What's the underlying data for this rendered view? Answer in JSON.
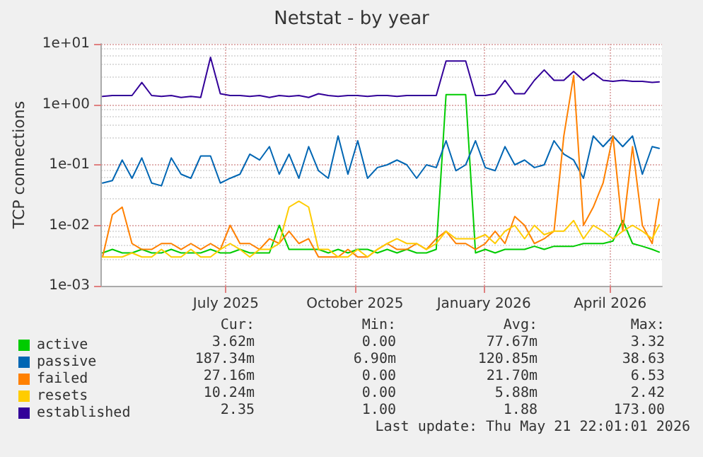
{
  "chart_data": {
    "type": "line",
    "title": "Netstat - by year",
    "ylabel": "TCP connections",
    "x": [
      "2025-04-19",
      "2025-04-26",
      "2025-05-03",
      "2025-05-10",
      "2025-05-17",
      "2025-05-24",
      "2025-05-31",
      "2025-06-07",
      "2025-06-14",
      "2025-06-21",
      "2025-06-28",
      "2025-07-05",
      "2025-07-12",
      "2025-07-19",
      "2025-07-26",
      "2025-08-02",
      "2025-08-09",
      "2025-08-16",
      "2025-08-23",
      "2025-08-30",
      "2025-09-06",
      "2025-09-13",
      "2025-09-20",
      "2025-09-27",
      "2025-10-04",
      "2025-10-11",
      "2025-10-18",
      "2025-10-25",
      "2025-11-01",
      "2025-11-08",
      "2025-11-15",
      "2025-11-22",
      "2025-11-29",
      "2025-12-06",
      "2025-12-13",
      "2025-12-20",
      "2025-12-27",
      "2026-01-03",
      "2026-01-10",
      "2026-01-17",
      "2026-01-24",
      "2026-01-31",
      "2026-02-07",
      "2026-02-14",
      "2026-02-21",
      "2026-02-28",
      "2026-03-07",
      "2026-03-14",
      "2026-03-21",
      "2026-03-28",
      "2026-04-04",
      "2026-04-11",
      "2026-04-18",
      "2026-04-25",
      "2026-05-02",
      "2026-05-09",
      "2026-05-16",
      "2026-05-21"
    ],
    "series": [
      {
        "name": "active",
        "color": "#00cc00",
        "values": [
          0.0035,
          0.004,
          0.0035,
          0.0035,
          0.004,
          0.0035,
          0.0035,
          0.004,
          0.0035,
          0.0035,
          0.0035,
          0.004,
          0.0035,
          0.0035,
          0.004,
          0.0035,
          0.0035,
          0.0035,
          0.01,
          0.004,
          0.004,
          0.004,
          0.004,
          0.0035,
          0.004,
          0.0035,
          0.004,
          0.004,
          0.0035,
          0.004,
          0.0035,
          0.004,
          0.0035,
          0.0035,
          0.004,
          1.45,
          1.45,
          1.45,
          0.0035,
          0.004,
          0.0035,
          0.004,
          0.004,
          0.004,
          0.0045,
          0.004,
          0.0045,
          0.0045,
          0.0045,
          0.005,
          0.005,
          0.005,
          0.0055,
          0.012,
          0.005,
          0.0045,
          0.004,
          0.0036
        ]
      },
      {
        "name": "passive",
        "color": "#0066b3",
        "values": [
          0.05,
          0.055,
          0.12,
          0.06,
          0.13,
          0.05,
          0.045,
          0.13,
          0.07,
          0.06,
          0.14,
          0.14,
          0.05,
          0.06,
          0.07,
          0.15,
          0.12,
          0.2,
          0.07,
          0.15,
          0.06,
          0.2,
          0.08,
          0.06,
          0.3,
          0.07,
          0.25,
          0.06,
          0.09,
          0.1,
          0.12,
          0.1,
          0.06,
          0.1,
          0.09,
          0.25,
          0.08,
          0.1,
          0.25,
          0.09,
          0.08,
          0.2,
          0.1,
          0.12,
          0.09,
          0.1,
          0.25,
          0.15,
          0.12,
          0.06,
          0.3,
          0.2,
          0.3,
          0.2,
          0.3,
          0.07,
          0.2,
          0.187
        ]
      },
      {
        "name": "failed",
        "color": "#ff8000",
        "values": [
          0.003,
          0.015,
          0.02,
          0.005,
          0.004,
          0.004,
          0.005,
          0.005,
          0.004,
          0.005,
          0.004,
          0.005,
          0.004,
          0.01,
          0.005,
          0.005,
          0.004,
          0.006,
          0.005,
          0.008,
          0.005,
          0.006,
          0.003,
          0.003,
          0.003,
          0.004,
          0.003,
          0.003,
          0.004,
          0.005,
          0.004,
          0.004,
          0.005,
          0.004,
          0.006,
          0.008,
          0.005,
          0.005,
          0.004,
          0.005,
          0.008,
          0.005,
          0.014,
          0.01,
          0.005,
          0.006,
          0.008,
          0.3,
          3.0,
          0.01,
          0.02,
          0.05,
          0.3,
          0.008,
          0.2,
          0.01,
          0.005,
          0.027
        ]
      },
      {
        "name": "resets",
        "color": "#ffcc00",
        "values": [
          0.003,
          0.003,
          0.003,
          0.0035,
          0.003,
          0.003,
          0.004,
          0.003,
          0.003,
          0.004,
          0.003,
          0.003,
          0.004,
          0.005,
          0.004,
          0.003,
          0.004,
          0.004,
          0.005,
          0.02,
          0.025,
          0.02,
          0.004,
          0.004,
          0.003,
          0.003,
          0.004,
          0.003,
          0.004,
          0.005,
          0.006,
          0.005,
          0.005,
          0.004,
          0.005,
          0.008,
          0.006,
          0.006,
          0.006,
          0.007,
          0.005,
          0.008,
          0.01,
          0.006,
          0.01,
          0.007,
          0.008,
          0.008,
          0.012,
          0.006,
          0.01,
          0.008,
          0.006,
          0.008,
          0.01,
          0.008,
          0.006,
          0.0102
        ]
      },
      {
        "name": "established",
        "color": "#330099",
        "values": [
          1.35,
          1.4,
          1.4,
          1.4,
          2.3,
          1.4,
          1.35,
          1.4,
          1.3,
          1.35,
          1.3,
          6.0,
          1.5,
          1.4,
          1.4,
          1.35,
          1.4,
          1.3,
          1.4,
          1.35,
          1.4,
          1.3,
          1.5,
          1.4,
          1.35,
          1.4,
          1.4,
          1.35,
          1.4,
          1.4,
          1.35,
          1.4,
          1.4,
          1.4,
          1.4,
          5.2,
          5.2,
          5.2,
          1.4,
          1.4,
          1.5,
          2.5,
          1.5,
          1.5,
          2.5,
          3.7,
          2.5,
          2.5,
          3.5,
          2.5,
          3.3,
          2.5,
          2.4,
          2.5,
          2.4,
          2.4,
          2.3,
          2.35
        ]
      }
    ],
    "xlim": [
      "2025-04-18",
      "2026-05-23"
    ],
    "xticks": [
      {
        "value": "2025-07-16",
        "label": "July 2025"
      },
      {
        "value": "2025-10-16",
        "label": "October 2025"
      },
      {
        "value": "2026-01-16",
        "label": "January 2026"
      },
      {
        "value": "2026-04-16",
        "label": "April 2026"
      }
    ],
    "ylim": [
      0.001,
      10
    ],
    "yticks": [
      {
        "value": 0.001,
        "label": "1e-03"
      },
      {
        "value": 0.01,
        "label": "1e-02"
      },
      {
        "value": 0.1,
        "label": "1e-01"
      },
      {
        "value": 1,
        "label": "1e+00"
      },
      {
        "value": 10,
        "label": "1e+01"
      }
    ],
    "log": "y",
    "grid": true,
    "legend": "bottom",
    "marker": "none",
    "line_style": "solid",
    "annotations": [
      "Cur:",
      "Min:",
      "Avg:",
      "Max:",
      "3.62m",
      "0.00",
      "77.67m",
      "3.32",
      "187.34m",
      "6.90m",
      "120.85m",
      "38.63",
      "27.16m",
      "0.00",
      "21.70m",
      "6.53",
      "10.24m",
      "0.00",
      "5.88m",
      "2.42",
      "2.35",
      "1.00",
      "1.88",
      "173.00",
      "Last update: Thu May 21 22:01:01 2026"
    ]
  }
}
